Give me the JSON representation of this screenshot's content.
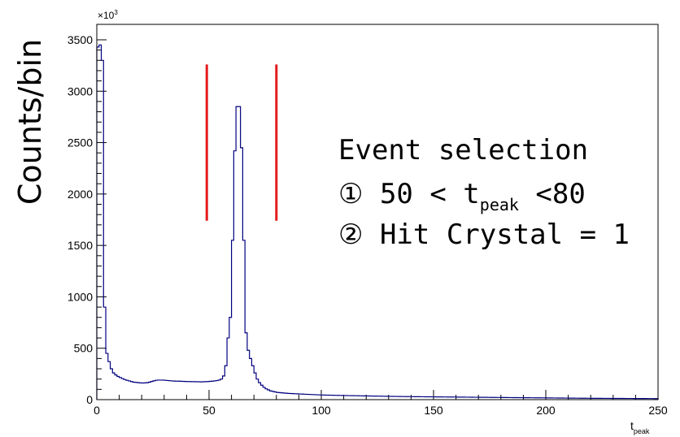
{
  "chart_data": {
    "type": "histogram",
    "title": "",
    "ylabel": "Counts/bin",
    "xlabel": {
      "base": "t",
      "sub": "peak"
    },
    "y_multiplier": {
      "base": "×10",
      "sup": "3"
    },
    "xlim": [
      0,
      250
    ],
    "ylim": [
      0,
      3650
    ],
    "grid": false,
    "x_ticks": [
      "0",
      "50",
      "100",
      "150",
      "200",
      "250"
    ],
    "y_ticks": [
      "0",
      "500",
      "1000",
      "1500",
      "2000",
      "2500",
      "3000",
      "3500"
    ],
    "bin_width": 1,
    "series": [
      {
        "color": "#00007f",
        "x": [
          0,
          1,
          2,
          3,
          4,
          5,
          6,
          7,
          8,
          9,
          10,
          11,
          12,
          13,
          14,
          15,
          16,
          17,
          18,
          19,
          20,
          21,
          22,
          23,
          24,
          25,
          26,
          27,
          28,
          29,
          30,
          31,
          32,
          33,
          34,
          35,
          36,
          37,
          38,
          39,
          40,
          41,
          42,
          43,
          44,
          45,
          46,
          47,
          48,
          49,
          50,
          51,
          52,
          53,
          54,
          55,
          56,
          57,
          58,
          59,
          60,
          61,
          62,
          63,
          64,
          65,
          66,
          67,
          68,
          69,
          70,
          71,
          72,
          73,
          74,
          75,
          76,
          77,
          78,
          79,
          80,
          85,
          90,
          95,
          100,
          110,
          120,
          130,
          140,
          150,
          160,
          170,
          180,
          190,
          200,
          210,
          220,
          230,
          240,
          249
        ],
        "values": [
          3430,
          3450,
          3300,
          900,
          450,
          370,
          300,
          260,
          240,
          225,
          215,
          205,
          195,
          188,
          182,
          176,
          170,
          168,
          165,
          163,
          162,
          163,
          165,
          170,
          177,
          183,
          188,
          190,
          190,
          190,
          188,
          186,
          184,
          182,
          181,
          180,
          180,
          179,
          178,
          177,
          176,
          176,
          175,
          175,
          174,
          174,
          173,
          174,
          175,
          176,
          178,
          180,
          182,
          185,
          190,
          200,
          230,
          330,
          600,
          800,
          1550,
          2420,
          2850,
          2850,
          2450,
          1550,
          650,
          480,
          400,
          330,
          260,
          200,
          165,
          140,
          120,
          105,
          95,
          85,
          80,
          75,
          70,
          60,
          55,
          50,
          45,
          40,
          36,
          32,
          29,
          27,
          25,
          23,
          21,
          19,
          17,
          15,
          13,
          12,
          11,
          10
        ]
      }
    ],
    "selection_lines": [
      {
        "x": 49,
        "y1": 1740,
        "y2": 3260,
        "color": "#e41a1c"
      },
      {
        "x": 80,
        "y1": 1740,
        "y2": 3260,
        "color": "#e41a1c"
      }
    ],
    "annotations": {
      "line1": "Event selection",
      "line2_prefix": "① 50 < t",
      "line2_sub": "peak",
      "line2_suffix": " <80",
      "line3": "② Hit Crystal = 1"
    }
  }
}
